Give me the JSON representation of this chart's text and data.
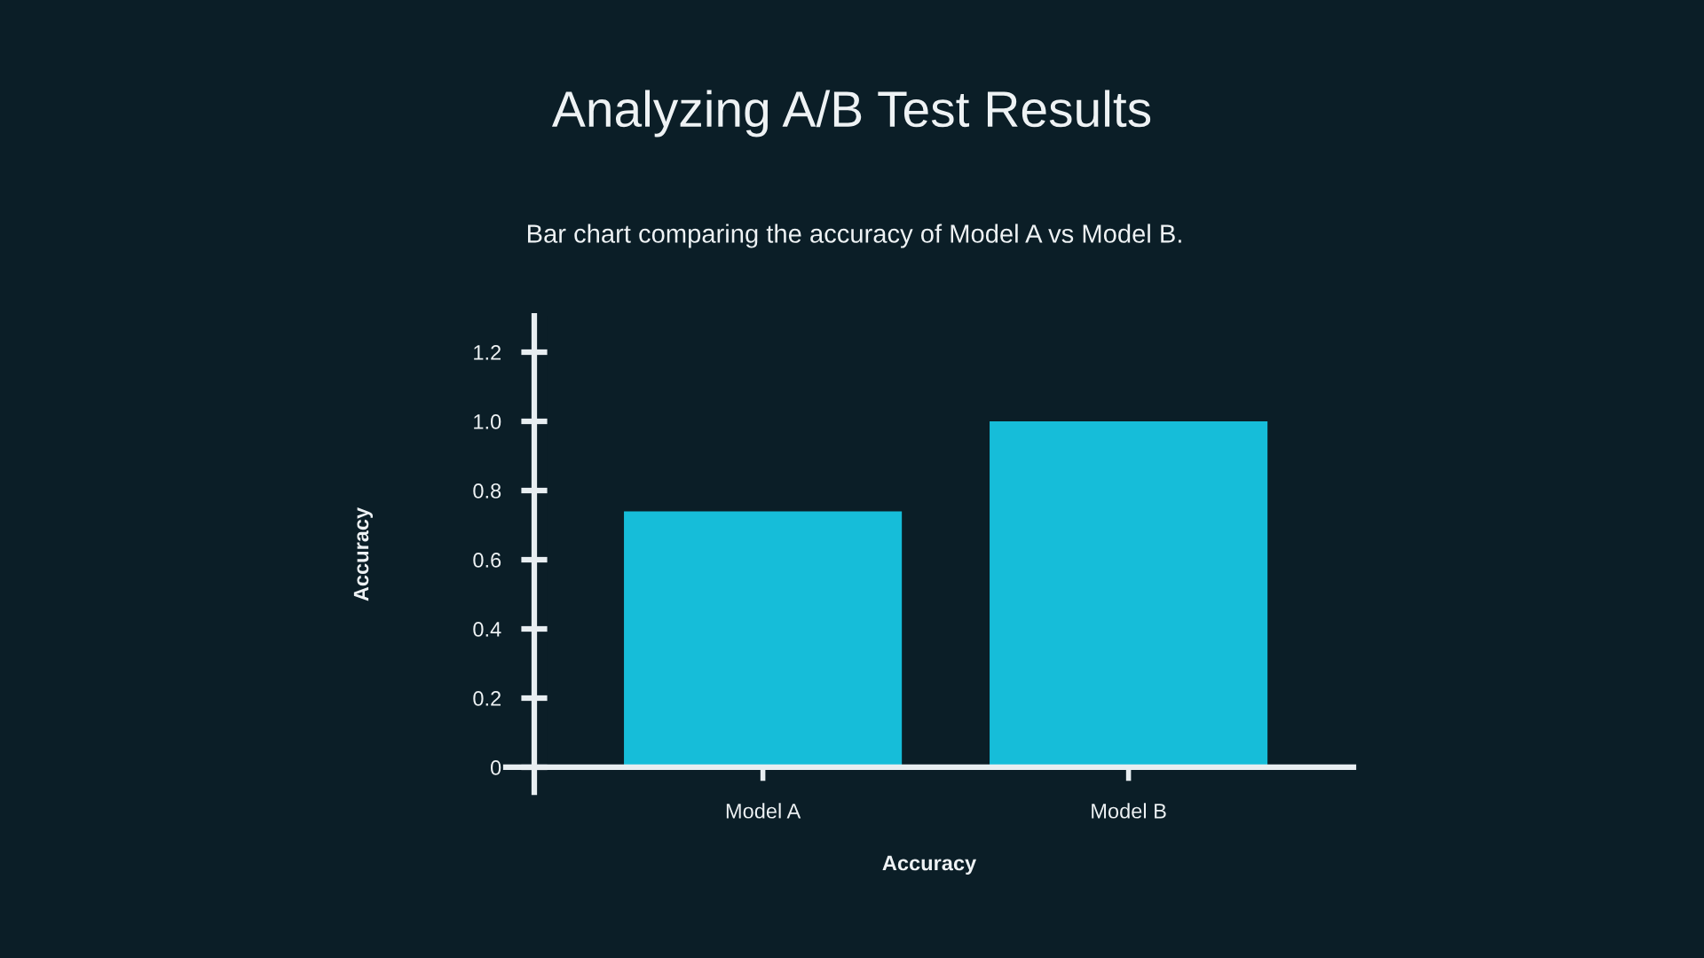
{
  "chart_data": {
    "type": "bar",
    "title": "Analyzing A/B Test Results",
    "subtitle": "Bar chart comparing the accuracy of Model A vs Model B.",
    "xlabel": "Accuracy",
    "ylabel": "Accuracy",
    "categories": [
      "Model A",
      "Model B"
    ],
    "values": [
      0.74,
      1.0
    ],
    "color": "#16bdd9",
    "ylim": [
      0,
      1.305
    ],
    "yticks": [
      0,
      0.2,
      0.4,
      0.6,
      0.8,
      {
        "value": 1,
        "label": "1.0"
      },
      1.2
    ]
  }
}
